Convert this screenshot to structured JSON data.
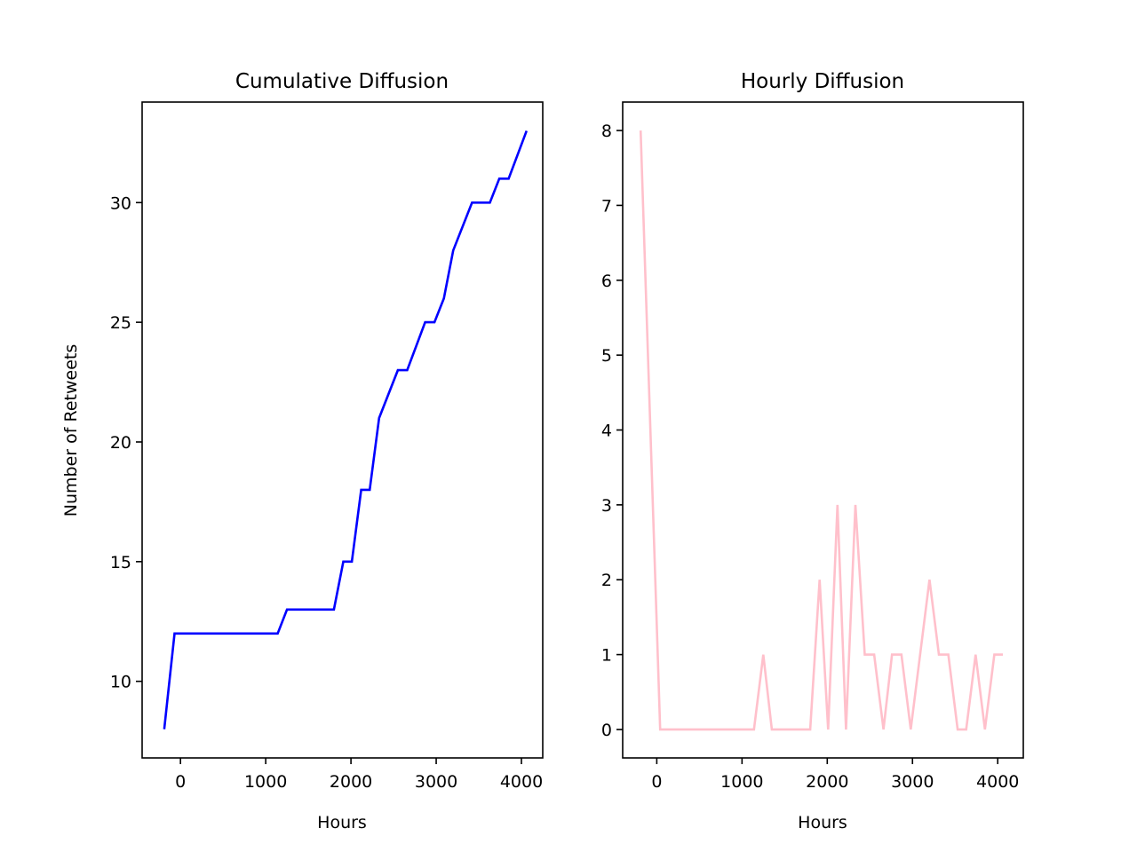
{
  "chart_data": [
    {
      "type": "line",
      "title": "Cumulative Diffusion",
      "xlabel": "Hours",
      "ylabel": "Number of Retweets",
      "xlim": [
        -450,
        4250
      ],
      "ylim": [
        6.8,
        34.2
      ],
      "xticks": [
        0,
        1000,
        2000,
        3000,
        4000
      ],
      "yticks": [
        10,
        15,
        20,
        25,
        30
      ],
      "color": "#0000ff",
      "grid": false,
      "series": [
        {
          "x": [
            -190,
            -70,
            1140,
            1250,
            1800,
            1910,
            2010,
            2120,
            2220,
            2330,
            2550,
            2660,
            2870,
            2980,
            3090,
            3200,
            3420,
            3630,
            3740,
            3850,
            4060
          ],
          "values": [
            8,
            12,
            12,
            13,
            13,
            15,
            15,
            18,
            18,
            21,
            23,
            23,
            25,
            25,
            26,
            28,
            30,
            30,
            31,
            31,
            33
          ]
        }
      ]
    },
    {
      "type": "line",
      "title": "Hourly Diffusion",
      "xlabel": "Hours",
      "ylabel": "",
      "xlim": [
        -400,
        4300
      ],
      "ylim": [
        -0.38,
        8.38
      ],
      "xticks": [
        0,
        1000,
        2000,
        3000,
        4000
      ],
      "yticks": [
        0,
        1,
        2,
        3,
        4,
        5,
        6,
        7,
        8
      ],
      "color": "#ffc0cb",
      "grid": false,
      "series": [
        {
          "x": [
            -190,
            40,
            1140,
            1250,
            1350,
            1800,
            1910,
            2010,
            2120,
            2220,
            2330,
            2440,
            2550,
            2660,
            2760,
            2870,
            2980,
            3200,
            3310,
            3420,
            3530,
            3630,
            3740,
            3850,
            3960,
            4060
          ],
          "values": [
            8,
            0,
            0,
            1,
            0,
            0,
            2,
            0,
            3,
            0,
            3,
            1,
            1,
            0,
            1,
            1,
            0,
            2,
            1,
            1,
            0,
            0,
            1,
            0,
            1,
            1
          ]
        }
      ]
    }
  ]
}
